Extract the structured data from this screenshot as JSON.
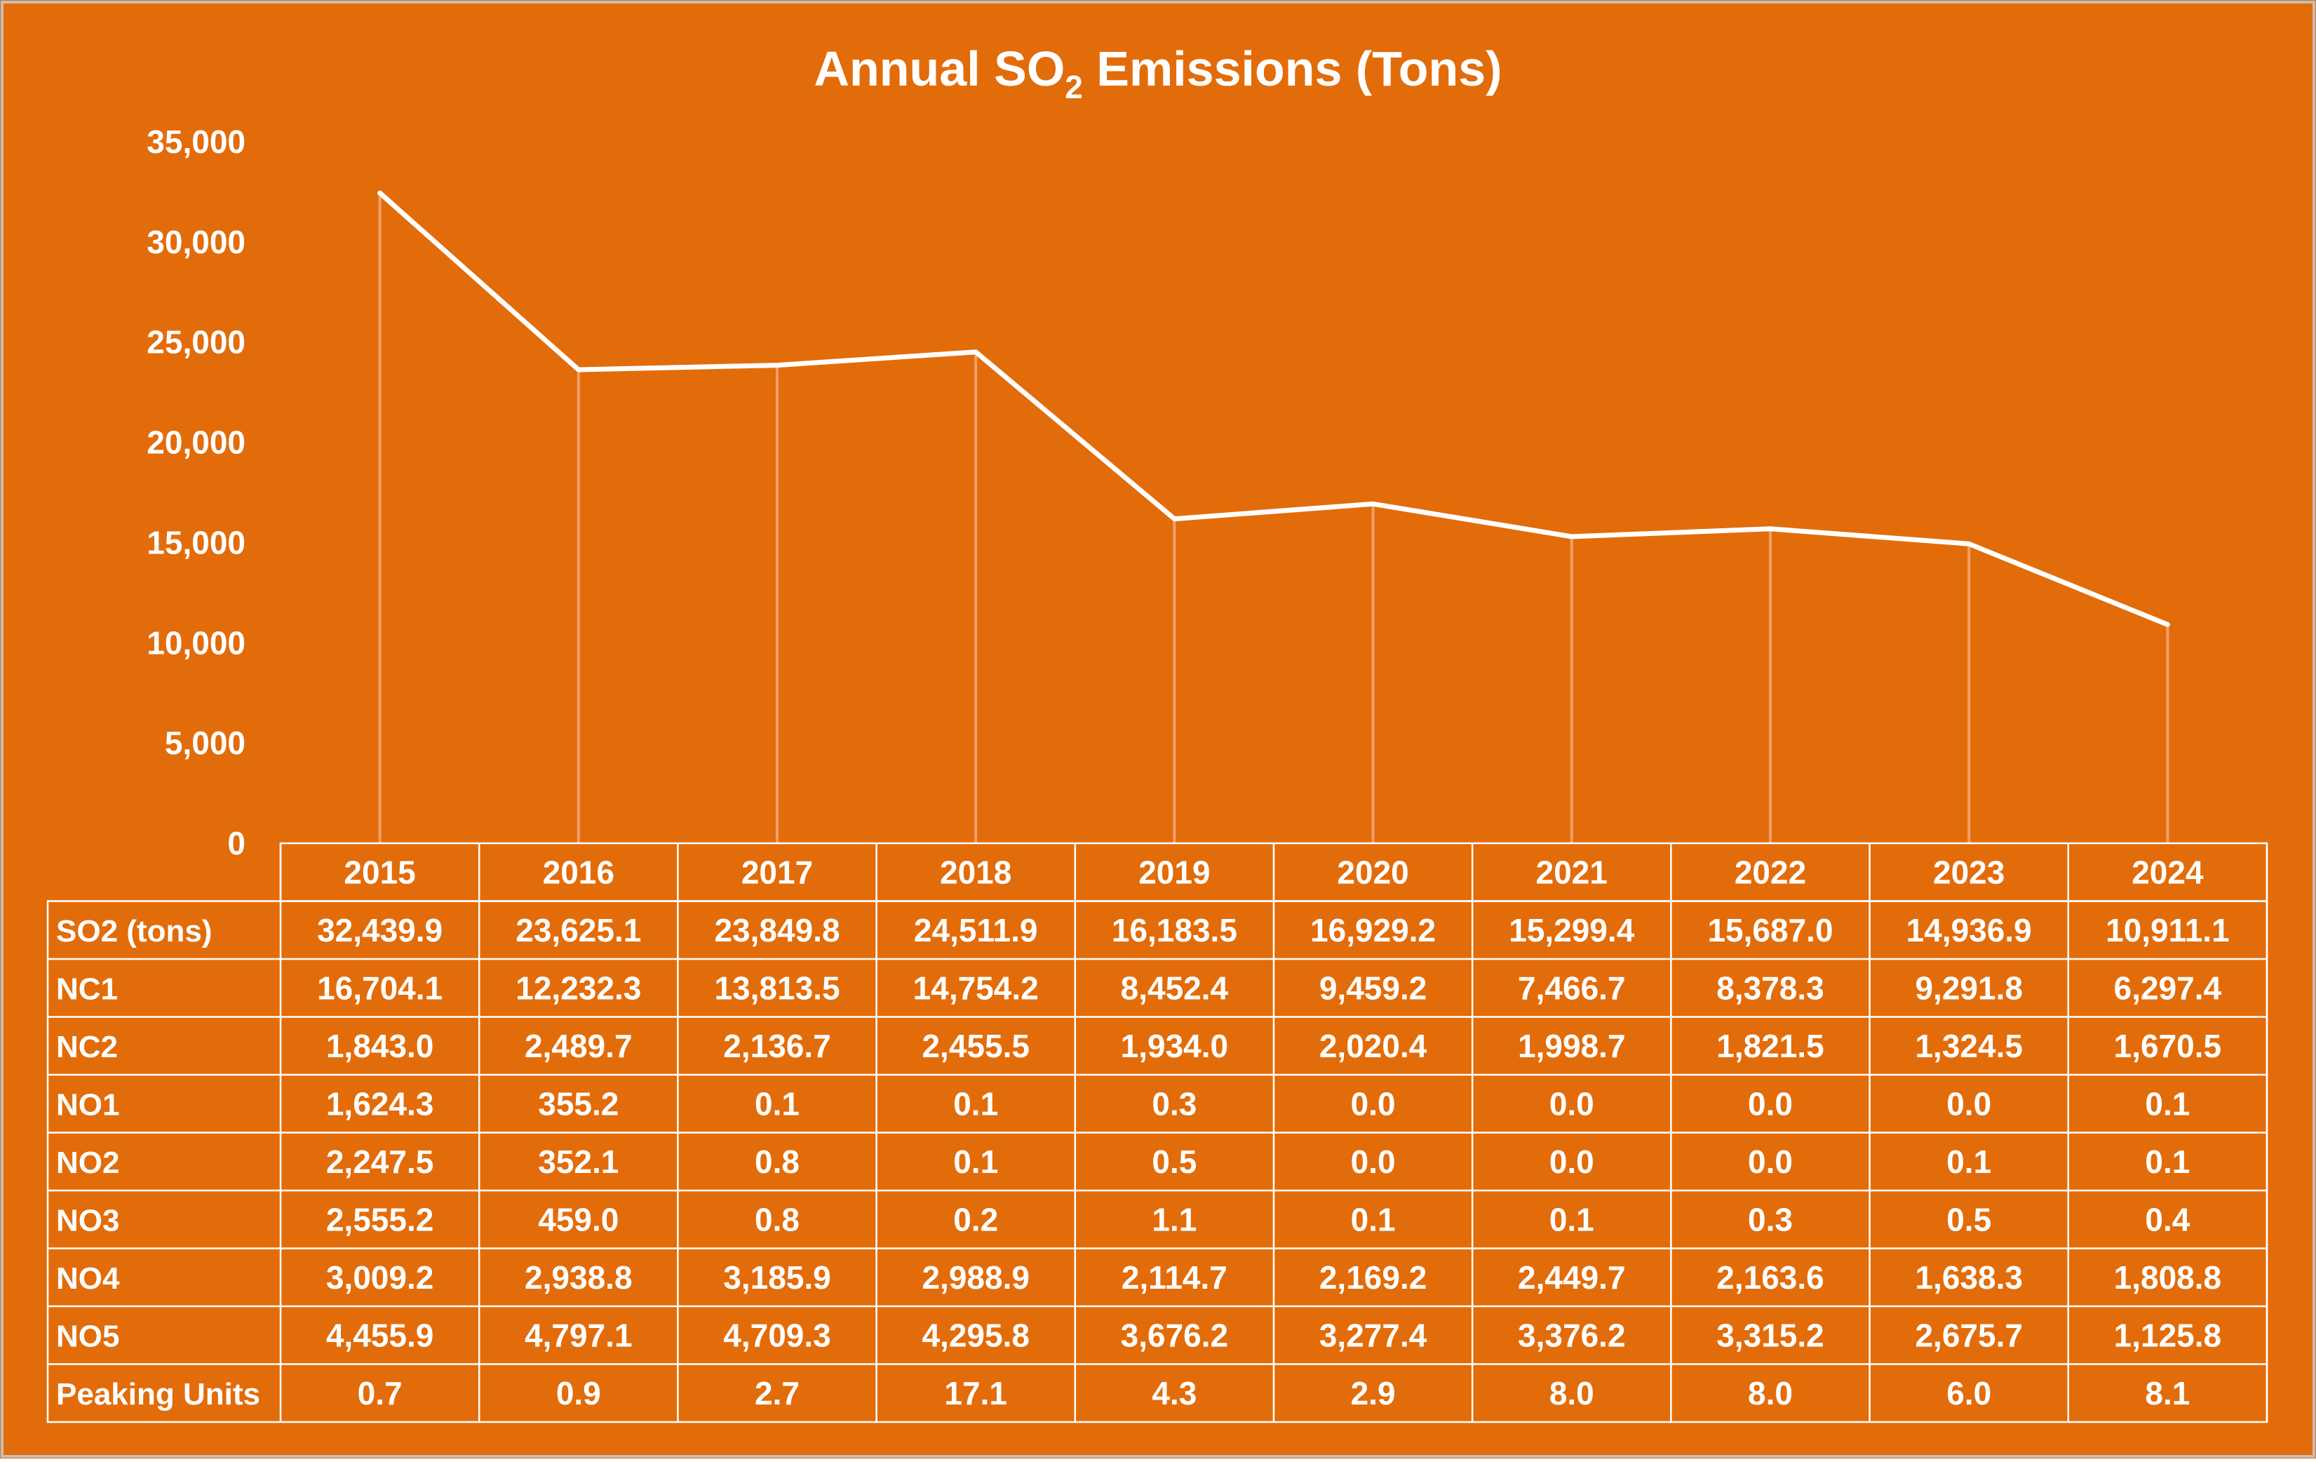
{
  "title": {
    "prefix": "Annual SO",
    "subscript": "2",
    "suffix": " Emissions (Tons)"
  },
  "colors": {
    "background": "#E36C0A",
    "line": "#FFFFFF",
    "gridline": "#F2A06A",
    "table_border": "#FFFFFF",
    "frame_border": "#BFBFBF"
  },
  "chart_data": {
    "type": "line",
    "title": "Annual SO2 Emissions (Tons)",
    "ylim": [
      0,
      35000
    ],
    "yticks": [
      0,
      5000,
      10000,
      15000,
      20000,
      25000,
      30000,
      35000
    ],
    "ytick_labels": [
      "0",
      "5,000",
      "10,000",
      "15,000",
      "20,000",
      "25,000",
      "30,000",
      "35,000"
    ],
    "categories": [
      "2015",
      "2016",
      "2017",
      "2018",
      "2019",
      "2020",
      "2021",
      "2022",
      "2023",
      "2024"
    ],
    "plotted_series": "SO2 (tons)",
    "legend": "data-table",
    "series": [
      {
        "name": "SO2 (tons)",
        "values": [
          32439.9,
          23625.1,
          23849.8,
          24511.9,
          16183.5,
          16929.2,
          15299.4,
          15687.0,
          14936.9,
          10911.1
        ],
        "labels": [
          "32,439.9",
          "23,625.1",
          "23,849.8",
          "24,511.9",
          "16,183.5",
          "16,929.2",
          "15,299.4",
          "15,687.0",
          "14,936.9",
          "10,911.1"
        ]
      },
      {
        "name": "NC1",
        "labels": [
          "16,704.1",
          "12,232.3",
          "13,813.5",
          "14,754.2",
          "8,452.4",
          "9,459.2",
          "7,466.7",
          "8,378.3",
          "9,291.8",
          "6,297.4"
        ]
      },
      {
        "name": "NC2",
        "labels": [
          "1,843.0",
          "2,489.7",
          "2,136.7",
          "2,455.5",
          "1,934.0",
          "2,020.4",
          "1,998.7",
          "1,821.5",
          "1,324.5",
          "1,670.5"
        ]
      },
      {
        "name": "NO1",
        "labels": [
          "1,624.3",
          "355.2",
          "0.1",
          "0.1",
          "0.3",
          "0.0",
          "0.0",
          "0.0",
          "0.0",
          "0.1"
        ]
      },
      {
        "name": "NO2",
        "labels": [
          "2,247.5",
          "352.1",
          "0.8",
          "0.1",
          "0.5",
          "0.0",
          "0.0",
          "0.0",
          "0.1",
          "0.1"
        ]
      },
      {
        "name": "NO3",
        "labels": [
          "2,555.2",
          "459.0",
          "0.8",
          "0.2",
          "1.1",
          "0.1",
          "0.1",
          "0.3",
          "0.5",
          "0.4"
        ]
      },
      {
        "name": "NO4",
        "labels": [
          "3,009.2",
          "2,938.8",
          "3,185.9",
          "2,988.9",
          "2,114.7",
          "2,169.2",
          "2,449.7",
          "2,163.6",
          "1,638.3",
          "1,808.8"
        ]
      },
      {
        "name": "NO5",
        "labels": [
          "4,455.9",
          "4,797.1",
          "4,709.3",
          "4,295.8",
          "3,676.2",
          "3,277.4",
          "3,376.2",
          "3,315.2",
          "2,675.7",
          "1,125.8"
        ]
      },
      {
        "name": "Peaking Units",
        "labels": [
          "0.7",
          "0.9",
          "2.7",
          "17.1",
          "4.3",
          "2.9",
          "8.0",
          "8.0",
          "6.0",
          "8.1"
        ]
      }
    ]
  }
}
